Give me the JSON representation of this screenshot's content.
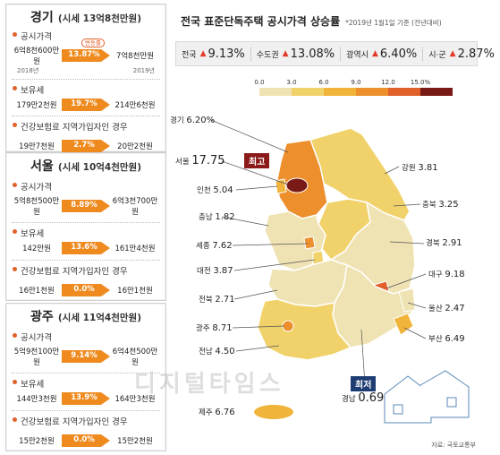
{
  "title": "전국 표준단독주택 공시가격 상승률",
  "title_note": "*2019년 1월1일 기준 (전년대비)",
  "summary": [
    {
      "label": "전국",
      "value": "9.13%"
    },
    {
      "label": "수도권",
      "value": "13.08%"
    },
    {
      "label": "광역시",
      "value": "6.40%"
    },
    {
      "label": "시·군",
      "value": "2.87%"
    }
  ],
  "legend": {
    "ticks": [
      "0.0",
      "3.0",
      "6.0",
      "9.0",
      "12.0",
      "15.0%"
    ],
    "colors": [
      "#efe3b3",
      "#f1d26a",
      "#f0b43b",
      "#ec8f2c",
      "#e0602a",
      "#7a1a16"
    ]
  },
  "panels": [
    {
      "name": "경기",
      "sub": "(시세 13억8천만원)",
      "rows": [
        {
          "label": "공시가격",
          "from": "6억8천600만원",
          "rate": "13.87%",
          "to": "7억8천만원",
          "year_from": "2018년",
          "year_to": "2019년",
          "tag": "변동률"
        },
        {
          "label": "보유세",
          "from": "179만2천원",
          "rate": "19.7%",
          "to": "214만6천원"
        },
        {
          "label": "건강보험료  지역가입자인 경우",
          "from": "19만7천원",
          "rate": "2.7%",
          "to": "20만2천원"
        }
      ]
    },
    {
      "name": "서울",
      "sub": "(시세 10억4천만원)",
      "rows": [
        {
          "label": "공시가격",
          "from": "5억8천500만원",
          "rate": "8.89%",
          "to": "6억3천700만원"
        },
        {
          "label": "보유세",
          "from": "142만원",
          "rate": "13.6%",
          "to": "161만4천원"
        },
        {
          "label": "건강보험료  지역가입자인 경우",
          "from": "16만1천원",
          "rate": "0.0%",
          "to": "16만1천원"
        }
      ]
    },
    {
      "name": "광주",
      "sub": "(시세 11억4천만원)",
      "rows": [
        {
          "label": "공시가격",
          "from": "5억9천100만원",
          "rate": "9.14%",
          "to": "6억4천500만원"
        },
        {
          "label": "보유세",
          "from": "144만3천원",
          "rate": "13.9%",
          "to": "164만3천원"
        },
        {
          "label": "건강보험료  지역가입자인 경우",
          "from": "15만2천원",
          "rate": "0.0%",
          "to": "15만2천원"
        }
      ]
    }
  ],
  "regions": [
    {
      "name": "경기",
      "value": "6.20%"
    },
    {
      "name": "서울",
      "value": "17.75"
    },
    {
      "name": "인천",
      "value": "5.04"
    },
    {
      "name": "강원",
      "value": "3.81"
    },
    {
      "name": "충남",
      "value": "1.82"
    },
    {
      "name": "충북",
      "value": "3.25"
    },
    {
      "name": "세종",
      "value": "7.62"
    },
    {
      "name": "경북",
      "value": "2.91"
    },
    {
      "name": "대전",
      "value": "3.87"
    },
    {
      "name": "대구",
      "value": "9.18"
    },
    {
      "name": "전북",
      "value": "2.71"
    },
    {
      "name": "울산",
      "value": "2.47"
    },
    {
      "name": "광주",
      "value": "8.71"
    },
    {
      "name": "부산",
      "value": "6.49"
    },
    {
      "name": "전남",
      "value": "4.50"
    },
    {
      "name": "경남",
      "value": "0.69"
    },
    {
      "name": "제주",
      "value": "6.76"
    }
  ],
  "badges": {
    "top": "최고",
    "bottom": "최저"
  },
  "source": "자료: 국토교통부",
  "watermark": "디지털타임스"
}
